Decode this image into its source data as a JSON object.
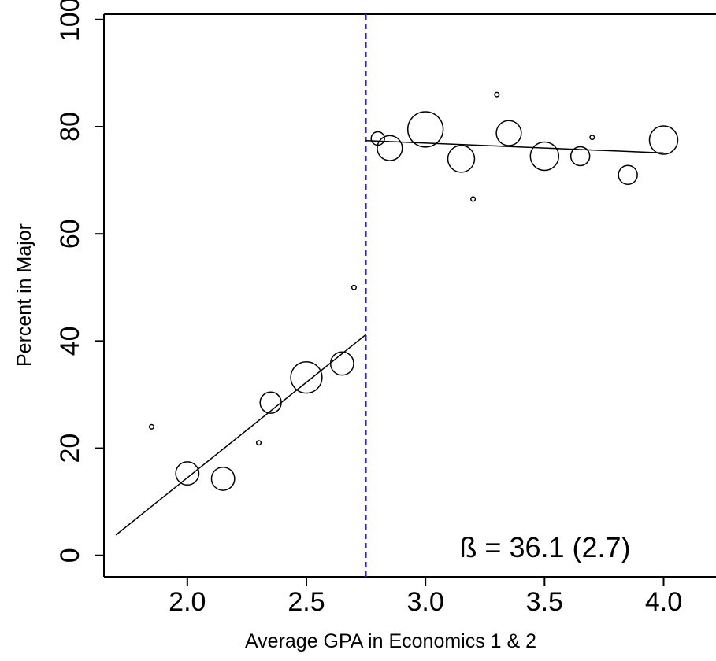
{
  "chart_data": {
    "type": "scatter",
    "title": "",
    "xlabel": "Average GPA in Economics 1 & 2",
    "ylabel": "Percent in Major",
    "xlim": [
      1.65,
      4.22
    ],
    "ylim": [
      -4,
      101
    ],
    "x_ticks": [
      2.0,
      2.5,
      3.0,
      3.5,
      4.0
    ],
    "x_tick_labels": [
      "2.0",
      "2.5",
      "3.0",
      "3.5",
      "4.0"
    ],
    "y_ticks": [
      0,
      20,
      40,
      60,
      80,
      100
    ],
    "y_tick_labels": [
      "0",
      "20",
      "40",
      "60",
      "80",
      "100"
    ],
    "grid": false,
    "legend": "none",
    "cutoff": {
      "x": 2.75,
      "style": "dashed",
      "color": "#2222ee"
    },
    "points": [
      {
        "x": 1.85,
        "y": 24,
        "size": 1
      },
      {
        "x": 2.0,
        "y": 15.3,
        "size": 6
      },
      {
        "x": 2.15,
        "y": 14.3,
        "size": 6
      },
      {
        "x": 2.3,
        "y": 21,
        "size": 1
      },
      {
        "x": 2.35,
        "y": 28.5,
        "size": 5
      },
      {
        "x": 2.5,
        "y": 33.2,
        "size": 11
      },
      {
        "x": 2.65,
        "y": 35.8,
        "size": 6
      },
      {
        "x": 2.7,
        "y": 50,
        "size": 1
      },
      {
        "x": 2.8,
        "y": 77.8,
        "size": 2
      },
      {
        "x": 2.85,
        "y": 76,
        "size": 7
      },
      {
        "x": 3.0,
        "y": 79.5,
        "size": 14
      },
      {
        "x": 3.15,
        "y": 74,
        "size": 8
      },
      {
        "x": 3.2,
        "y": 66.5,
        "size": 1
      },
      {
        "x": 3.3,
        "y": 86,
        "size": 1
      },
      {
        "x": 3.35,
        "y": 78.8,
        "size": 7
      },
      {
        "x": 3.5,
        "y": 74.5,
        "size": 9
      },
      {
        "x": 3.65,
        "y": 74.5,
        "size": 4
      },
      {
        "x": 3.7,
        "y": 78,
        "size": 1
      },
      {
        "x": 3.85,
        "y": 71,
        "size": 4
      },
      {
        "x": 4.0,
        "y": 77.5,
        "size": 9
      }
    ],
    "fit_lines": [
      {
        "x": [
          1.7,
          2.75
        ],
        "y": [
          3.8,
          41.2
        ]
      },
      {
        "x": [
          2.75,
          4.0
        ],
        "y": [
          77.4,
          75.1
        ]
      }
    ],
    "annotation": "ß = 36.1 (2.7)"
  }
}
